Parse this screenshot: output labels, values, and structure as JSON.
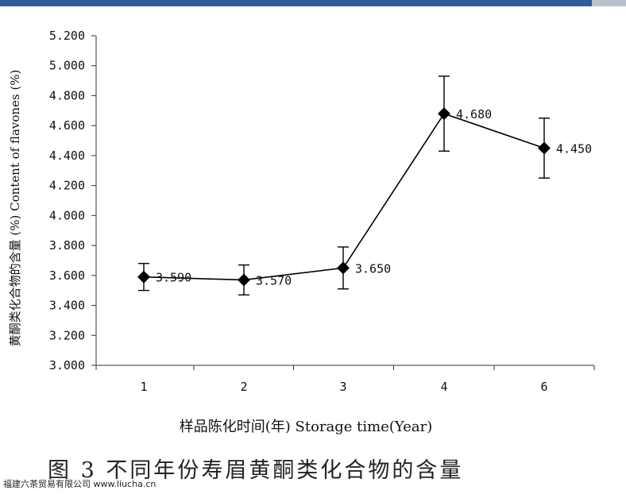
{
  "chart_data": {
    "type": "line",
    "title": "",
    "xlabel": "样品陈化时间(年) Storage time(Year)",
    "ylabel": "黄酮类化合物的含量 (%) Content of flavones (%)",
    "categories": [
      "1",
      "2",
      "3",
      "4",
      "6"
    ],
    "series": [
      {
        "values": [
          3.59,
          3.57,
          3.65,
          4.68,
          4.45
        ],
        "value_labels": [
          "3.590",
          "3.570",
          "3.650",
          "4.680",
          "4.450"
        ],
        "error_low": [
          3.5,
          3.47,
          3.51,
          4.43,
          4.25
        ],
        "error_high": [
          3.68,
          3.67,
          3.79,
          4.93,
          4.65
        ],
        "marker": "diamond",
        "color": "#000000"
      }
    ],
    "yticks": [
      "3.000",
      "3.200",
      "3.400",
      "3.600",
      "3.800",
      "4.000",
      "4.200",
      "4.400",
      "4.600",
      "4.800",
      "5.000",
      "5.200"
    ],
    "ylim": [
      3.0,
      5.2
    ],
    "grid": false,
    "legend": "none"
  },
  "caption": "图 3 不同年份寿眉黄酮类化合物的含量",
  "watermark": "福建六茶贸易有限公司 www.liucha.cn",
  "colors": {
    "top_bar": "#2f5d9b",
    "line": "#000000"
  }
}
